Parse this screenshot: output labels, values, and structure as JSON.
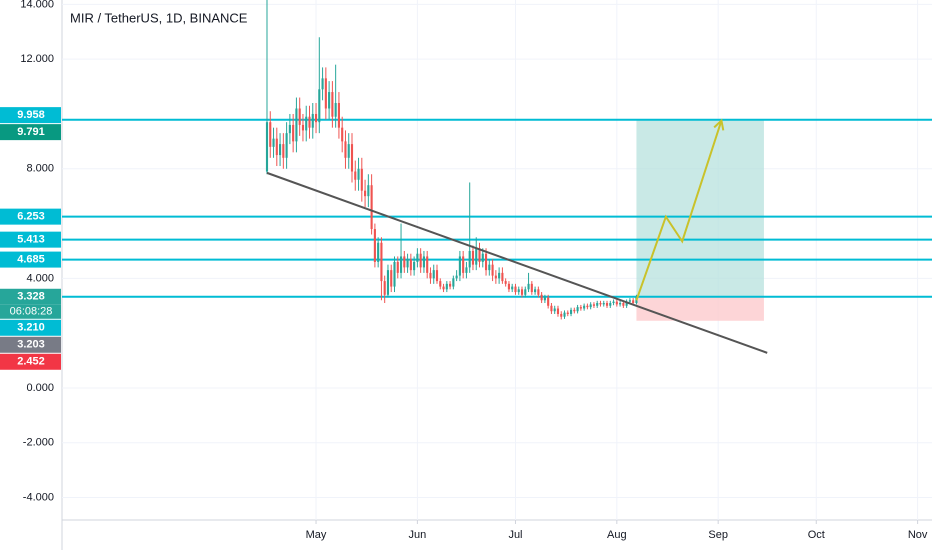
{
  "chart_data": {
    "type": "candlestick",
    "title": "MIR / TetherUS, 1D, BINANCE",
    "up_color": "#26a69a",
    "down_color": "#ef5350",
    "grid": true,
    "ylim": [
      -4.82,
      14.16
    ],
    "yticks": [
      {
        "value": 14,
        "label": "14.000"
      },
      {
        "value": 12,
        "label": "12.000"
      },
      {
        "value": 8,
        "label": "8.000"
      },
      {
        "value": 4,
        "label": "4.000"
      },
      {
        "value": 0,
        "label": "0.000"
      },
      {
        "value": -2,
        "label": "-2.000"
      },
      {
        "value": -4,
        "label": "-4.000"
      }
    ],
    "xlim": [
      -77.7,
      188.4
    ],
    "xticks": [
      {
        "value": 0,
        "label": "May"
      },
      {
        "value": 31,
        "label": "Jun"
      },
      {
        "value": 61,
        "label": "Jul"
      },
      {
        "value": 92,
        "label": "Aug"
      },
      {
        "value": 123,
        "label": "Sep"
      },
      {
        "value": 153,
        "label": "Oct"
      },
      {
        "value": 184,
        "label": "Nov"
      }
    ],
    "x": [
      -15,
      -14,
      -13,
      -12,
      -11,
      -10,
      -9,
      -8,
      -7,
      -6,
      -5,
      -4,
      -3,
      -2,
      -1,
      0,
      1,
      2,
      3,
      4,
      5,
      6,
      7,
      8,
      9,
      10,
      11,
      12,
      13,
      14,
      15,
      16,
      17,
      18,
      19,
      20,
      21,
      22,
      23,
      24,
      25,
      26,
      27,
      28,
      29,
      30,
      31,
      32,
      33,
      34,
      35,
      36,
      37,
      38,
      39,
      40,
      41,
      42,
      43,
      44,
      45,
      46,
      47,
      48,
      49,
      50,
      51,
      52,
      53,
      54,
      55,
      56,
      57,
      58,
      59,
      60,
      61,
      62,
      63,
      64,
      65,
      66,
      67,
      68,
      69,
      70,
      71,
      72,
      73,
      74,
      75,
      76,
      77,
      78,
      79,
      80,
      81,
      82,
      83,
      84,
      85,
      86,
      87,
      88,
      89,
      90,
      91,
      92,
      93,
      94,
      95,
      96,
      97,
      98
    ],
    "open": [
      7.9,
      9.7,
      8.8,
      9.1,
      8.5,
      8.9,
      8.4,
      9.3,
      9.6,
      9.0,
      10.2,
      9.6,
      9.4,
      9.9,
      9.5,
      10.0,
      9.7,
      10.9,
      11.3,
      10.2,
      10.8,
      9.9,
      10.4,
      9.5,
      9.0,
      8.4,
      8.9,
      7.9,
      7.6,
      8.0,
      7.2,
      7.0,
      7.4,
      5.8,
      4.6,
      5.3,
      3.9,
      3.4,
      4.3,
      3.7,
      4.6,
      4.2,
      4.8,
      4.4,
      4.7,
      4.3,
      4.6,
      4.9,
      4.4,
      4.8,
      4.2,
      4.0,
      4.3,
      3.9,
      3.7,
      3.6,
      3.8,
      3.7,
      4.0,
      4.1,
      4.8,
      4.2,
      4.4,
      5.0,
      4.5,
      5.1,
      4.6,
      4.9,
      4.3,
      4.5,
      4.1,
      4.0,
      4.2,
      3.9,
      3.8,
      3.6,
      3.7,
      3.5,
      3.6,
      3.4,
      3.6,
      3.8,
      3.5,
      3.6,
      3.4,
      3.2,
      3.3,
      3.0,
      2.8,
      2.9,
      2.7,
      2.6,
      2.75,
      2.7,
      2.85,
      2.8,
      2.95,
      2.9,
      3.0,
      2.95,
      3.05,
      3.0,
      3.1,
      3.05,
      3.1,
      3.0,
      3.1,
      3.15,
      3.05,
      3.1,
      3.0,
      3.15,
      3.2,
      3.1
    ],
    "high": [
      14.2,
      10.1,
      9.5,
      9.5,
      9.3,
      9.3,
      9.7,
      10.0,
      10.0,
      10.6,
      10.6,
      10.0,
      10.3,
      10.3,
      10.4,
      10.4,
      12.8,
      11.7,
      11.7,
      11.2,
      11.2,
      11.8,
      10.8,
      9.9,
      9.4,
      9.3,
      9.3,
      8.3,
      8.4,
      8.4,
      7.6,
      7.8,
      7.8,
      6.0,
      5.5,
      5.5,
      4.1,
      4.5,
      4.5,
      4.8,
      4.8,
      6.0,
      5.0,
      4.9,
      4.9,
      4.8,
      5.1,
      5.1,
      5.0,
      5.0,
      4.4,
      4.5,
      4.5,
      4.0,
      3.8,
      3.9,
      3.9,
      4.1,
      4.3,
      5.0,
      5.0,
      4.6,
      7.5,
      5.2,
      5.5,
      5.3,
      5.1,
      5.1,
      4.7,
      4.7,
      4.3,
      4.4,
      4.4,
      4.0,
      3.9,
      3.8,
      3.8,
      3.7,
      3.7,
      3.7,
      4.2,
      3.9,
      3.7,
      3.7,
      3.5,
      3.4,
      3.4,
      3.1,
      3.0,
      3.0,
      2.8,
      2.83,
      2.83,
      2.93,
      2.93,
      3.03,
      3.03,
      3.08,
      3.08,
      3.13,
      3.13,
      3.18,
      3.18,
      3.18,
      3.18,
      3.18,
      3.23,
      3.23,
      3.18,
      3.18,
      3.23,
      3.28,
      3.28,
      3.4
    ],
    "low": [
      7.8,
      8.4,
      8.4,
      8.1,
      8.1,
      8.0,
      8.0,
      8.9,
      8.6,
      8.6,
      9.2,
      9.0,
      9.0,
      9.1,
      9.1,
      9.3,
      9.3,
      10.5,
      9.8,
      9.8,
      9.5,
      9.5,
      9.1,
      8.6,
      8.0,
      8.0,
      7.5,
      7.2,
      7.2,
      6.8,
      6.6,
      6.6,
      5.6,
      4.4,
      4.4,
      3.2,
      3.1,
      3.3,
      3.5,
      3.5,
      4.0,
      4.0,
      4.2,
      4.2,
      4.1,
      4.1,
      4.4,
      4.2,
      4.2,
      4.0,
      3.8,
      3.8,
      3.8,
      3.6,
      3.5,
      3.5,
      3.6,
      3.6,
      3.9,
      3.9,
      4.0,
      4.0,
      4.2,
      4.3,
      4.3,
      4.4,
      4.4,
      4.1,
      4.1,
      3.9,
      3.8,
      3.8,
      3.8,
      3.7,
      3.5,
      3.5,
      3.4,
      3.4,
      3.3,
      3.3,
      3.5,
      3.4,
      3.4,
      3.3,
      3.1,
      3.1,
      2.9,
      2.7,
      2.7,
      2.6,
      2.5,
      2.52,
      2.62,
      2.62,
      2.72,
      2.72,
      2.82,
      2.82,
      2.87,
      2.87,
      2.92,
      2.92,
      2.97,
      2.97,
      2.92,
      2.92,
      3.02,
      2.97,
      2.97,
      2.92,
      2.92,
      3.07,
      3.02,
      3.05
    ],
    "close": [
      9.7,
      8.8,
      9.1,
      8.5,
      8.9,
      8.4,
      9.3,
      9.6,
      9.0,
      10.2,
      9.6,
      9.4,
      9.9,
      9.5,
      10.0,
      9.7,
      10.9,
      11.3,
      10.2,
      10.8,
      9.9,
      10.4,
      9.5,
      9.0,
      8.4,
      8.9,
      7.9,
      7.6,
      8.0,
      7.2,
      7.0,
      7.4,
      5.8,
      4.6,
      5.3,
      3.9,
      3.4,
      4.3,
      3.7,
      4.6,
      4.2,
      4.8,
      4.4,
      4.7,
      4.3,
      4.6,
      4.9,
      4.4,
      4.8,
      4.2,
      4.0,
      4.3,
      3.9,
      3.7,
      3.6,
      3.8,
      3.7,
      4.0,
      4.1,
      4.8,
      4.2,
      4.4,
      5.0,
      4.5,
      5.1,
      4.6,
      4.9,
      4.3,
      4.5,
      4.1,
      4.0,
      4.2,
      3.9,
      3.8,
      3.6,
      3.7,
      3.5,
      3.6,
      3.4,
      3.6,
      3.8,
      3.5,
      3.6,
      3.4,
      3.2,
      3.3,
      3.0,
      2.8,
      2.9,
      2.7,
      2.6,
      2.75,
      2.7,
      2.85,
      2.8,
      2.95,
      2.9,
      3.0,
      2.95,
      3.05,
      3.0,
      3.1,
      3.05,
      3.1,
      3.0,
      3.1,
      3.15,
      3.05,
      3.1,
      3.0,
      3.15,
      3.2,
      3.1,
      3.328
    ],
    "price_labels": [
      {
        "value": 9.958,
        "label": "9.958",
        "color": "#00bcd4",
        "line": false
      },
      {
        "value": 9.791,
        "label": "9.791",
        "color": "#089981",
        "line": true
      },
      {
        "value": 6.253,
        "label": "6.253",
        "color": "#00bcd4",
        "line": true
      },
      {
        "value": 5.413,
        "label": "5.413",
        "color": "#00bcd4",
        "line": true
      },
      {
        "value": 4.685,
        "label": "4.685",
        "color": "#00bcd4",
        "line": true
      },
      {
        "value": 3.328,
        "label": "3.328",
        "color": "#26a69a",
        "line": true
      },
      {
        "value": 3.21,
        "label": "3.210",
        "color": "#00bcd4",
        "line": false
      },
      {
        "value": 3.203,
        "label": "3.203",
        "color": "#787b86",
        "line": false
      },
      {
        "value": 2.452,
        "label": "2.452",
        "color": "#f23645",
        "line": false
      }
    ],
    "level_color": "#00bcd4",
    "countdown": "06:08:28",
    "trend_line": {
      "x": [
        -15,
        138
      ],
      "y": [
        7.85,
        1.28
      ],
      "color": "#555555"
    },
    "position": {
      "x": [
        98,
        137
      ],
      "target": 9.791,
      "entry": 3.328,
      "stop": 2.452,
      "profit_color": "#b2dfdb",
      "loss_color": "#fccbcd"
    },
    "projection": {
      "x": [
        98,
        107,
        112,
        124
      ],
      "y": [
        3.2,
        6.25,
        5.35,
        9.76
      ],
      "color": "#c9c22a"
    }
  }
}
